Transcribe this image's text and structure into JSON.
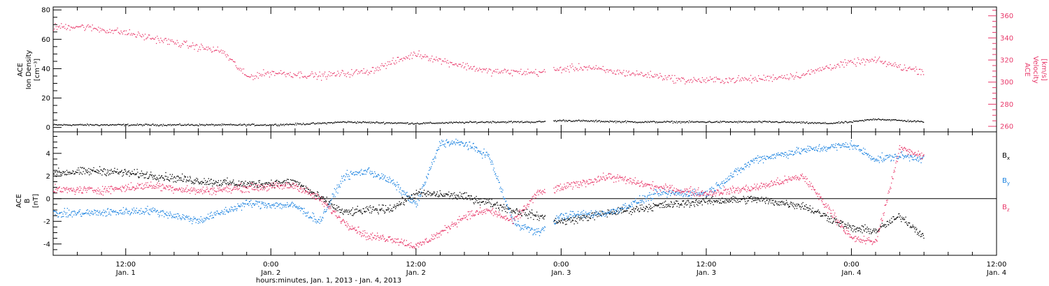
{
  "colors": {
    "density": "#000000",
    "velocity": "#e8386a",
    "bx": "#000000",
    "by": "#1a82e0",
    "bz": "#e8386a",
    "frame": "#000000"
  },
  "xaxis": {
    "title": "hours:minutes, Jan.  1, 2013 - Jan.  4, 2013",
    "range": [
      "2013-01-01T06:00",
      "2013-01-04T12:00"
    ],
    "ticks": [
      {
        "t": "2013-01-01T12:00",
        "time": "12:00",
        "day": "Jan. 1"
      },
      {
        "t": "2013-01-02T00:00",
        "time": "0:00",
        "day": "Jan. 2"
      },
      {
        "t": "2013-01-02T12:00",
        "time": "12:00",
        "day": "Jan. 2"
      },
      {
        "t": "2013-01-03T00:00",
        "time": "0:00",
        "day": "Jan. 3"
      },
      {
        "t": "2013-01-03T12:00",
        "time": "12:00",
        "day": "Jan. 3"
      },
      {
        "t": "2013-01-04T00:00",
        "time": "0:00",
        "day": "Jan. 4"
      },
      {
        "t": "2013-01-04T12:00",
        "time": "12:00",
        "day": "Jan. 4"
      }
    ]
  },
  "chart_data": [
    {
      "type": "scatter",
      "panel": "top",
      "left_axis": {
        "label_lines": [
          "ACE",
          "Ion Density",
          "[cm⁻³]"
        ],
        "ylim": [
          -3,
          82
        ],
        "ticks": [
          "0",
          "20",
          "40",
          "60",
          "80"
        ]
      },
      "right_axis": {
        "label_lines": [
          "ACE",
          "Velocity",
          "[km/s]"
        ],
        "ylim": [
          255,
          368
        ],
        "ticks": [
          "260",
          "280",
          "300",
          "320",
          "340",
          "360"
        ]
      },
      "series": [
        {
          "key": "density",
          "axis": "left",
          "x": [
            "2013-01-01T06:00",
            "2013-01-01T12:00",
            "2013-01-01T18:00",
            "2013-01-02T00:00",
            "2013-01-02T04:00",
            "2013-01-02T06:00",
            "2013-01-02T12:00",
            "2013-01-02T18:00",
            "2013-01-02T22:00",
            "2013-01-03T00:00",
            "2013-01-03T06:00",
            "2013-01-03T12:00",
            "2013-01-03T18:00",
            "2013-01-03T22:00",
            "2013-01-04T00:00",
            "2013-01-04T02:00",
            "2013-01-04T04:00",
            "2013-01-04T06:00"
          ],
          "y": [
            2,
            2,
            2,
            2,
            3,
            4,
            3,
            4,
            4,
            5,
            4,
            4,
            4,
            3,
            4,
            6,
            5,
            4
          ]
        },
        {
          "key": "velocity",
          "axis": "right",
          "x": [
            "2013-01-01T06:00",
            "2013-01-01T08:00",
            "2013-01-01T12:00",
            "2013-01-01T16:00",
            "2013-01-01T20:00",
            "2013-01-01T22:00",
            "2013-01-02T00:00",
            "2013-01-02T04:00",
            "2013-01-02T08:00",
            "2013-01-02T10:00",
            "2013-01-02T12:00",
            "2013-01-02T14:00",
            "2013-01-02T16:00",
            "2013-01-02T18:00",
            "2013-01-02T22:00",
            "2013-01-03T00:00",
            "2013-01-03T02:00",
            "2013-01-03T04:00",
            "2013-01-03T08:00",
            "2013-01-03T10:00",
            "2013-01-03T12:00",
            "2013-01-03T16:00",
            "2013-01-03T20:00",
            "2013-01-03T22:00",
            "2013-01-04T00:00",
            "2013-01-04T02:00",
            "2013-01-04T04:00",
            "2013-01-04T06:00"
          ],
          "y": [
            350,
            351,
            345,
            336,
            328,
            305,
            309,
            306,
            310,
            318,
            326,
            320,
            315,
            310,
            309,
            312,
            314,
            310,
            306,
            302,
            302,
            303,
            307,
            314,
            318,
            320,
            314,
            310
          ]
        }
      ]
    },
    {
      "type": "scatter",
      "panel": "bottom",
      "left_axis": {
        "label_lines": [
          "ACE",
          "B",
          "[nT]"
        ],
        "ylim": [
          -5,
          5.9
        ],
        "ticks": [
          "-4",
          "-2",
          "0",
          "2",
          "4"
        ]
      },
      "legend": [
        "Bx",
        "By",
        "Bz"
      ],
      "series": [
        {
          "key": "bx",
          "label": "Bx",
          "x": [
            "2013-01-01T06:00",
            "2013-01-01T10:00",
            "2013-01-01T14:00",
            "2013-01-01T18:00",
            "2013-01-01T22:00",
            "2013-01-02T02:00",
            "2013-01-02T06:00",
            "2013-01-02T08:00",
            "2013-01-02T10:00",
            "2013-01-02T12:00",
            "2013-01-02T14:00",
            "2013-01-02T16:00",
            "2013-01-02T18:00",
            "2013-01-02T20:00",
            "2013-01-03T00:00",
            "2013-01-03T04:00",
            "2013-01-03T08:00",
            "2013-01-03T12:00",
            "2013-01-03T16:00",
            "2013-01-03T20:00",
            "2013-01-04T00:00",
            "2013-01-04T02:00",
            "2013-01-04T04:00",
            "2013-01-04T06:00"
          ],
          "y": [
            2.3,
            2.5,
            2.1,
            1.6,
            1.3,
            1.5,
            -1.2,
            -1.0,
            -0.8,
            0.5,
            0.4,
            0.2,
            -0.3,
            -1.0,
            -2.0,
            -1.2,
            -0.6,
            -0.2,
            0.0,
            -0.6,
            -2.6,
            -2.8,
            -1.5,
            -3.3
          ]
        },
        {
          "key": "by",
          "label": "By",
          "x": [
            "2013-01-01T06:00",
            "2013-01-01T10:00",
            "2013-01-01T14:00",
            "2013-01-01T18:00",
            "2013-01-01T22:00",
            "2013-01-02T02:00",
            "2013-01-02T04:00",
            "2013-01-02T06:00",
            "2013-01-02T08:00",
            "2013-01-02T10:00",
            "2013-01-02T12:00",
            "2013-01-02T14:00",
            "2013-01-02T16:00",
            "2013-01-02T18:00",
            "2013-01-02T20:00",
            "2013-01-02T22:00",
            "2013-01-03T00:00",
            "2013-01-03T04:00",
            "2013-01-03T08:00",
            "2013-01-03T12:00",
            "2013-01-03T16:00",
            "2013-01-03T20:00",
            "2013-01-04T00:00",
            "2013-01-04T02:00",
            "2013-01-04T04:00",
            "2013-01-04T06:00"
          ],
          "y": [
            -1.3,
            -1.2,
            -1.0,
            -1.9,
            -0.4,
            -0.6,
            -2.0,
            2.0,
            2.5,
            1.5,
            -0.5,
            5.0,
            4.9,
            3.8,
            -2.0,
            -3.0,
            -1.5,
            -1.2,
            0.5,
            0.5,
            3.5,
            4.3,
            4.8,
            3.5,
            3.8,
            3.6
          ]
        },
        {
          "key": "bz",
          "label": "Bz",
          "x": [
            "2013-01-01T06:00",
            "2013-01-01T10:00",
            "2013-01-01T14:00",
            "2013-01-01T18:00",
            "2013-01-01T22:00",
            "2013-01-02T02:00",
            "2013-01-02T04:00",
            "2013-01-02T06:00",
            "2013-01-02T08:00",
            "2013-01-02T10:00",
            "2013-01-02T12:00",
            "2013-01-02T14:00",
            "2013-01-02T16:00",
            "2013-01-02T18:00",
            "2013-01-02T20:00",
            "2013-01-02T22:00",
            "2013-01-03T00:00",
            "2013-01-03T04:00",
            "2013-01-03T08:00",
            "2013-01-03T12:00",
            "2013-01-03T16:00",
            "2013-01-03T20:00",
            "2013-01-04T00:00",
            "2013-01-04T02:00",
            "2013-01-04T04:00",
            "2013-01-04T06:00"
          ],
          "y": [
            0.8,
            0.8,
            1.2,
            0.7,
            1.0,
            1.2,
            0.0,
            -2.0,
            -3.3,
            -3.5,
            -4.2,
            -3.0,
            -1.5,
            -1.0,
            -2.0,
            0.5,
            1.0,
            2.0,
            1.0,
            0.5,
            1.0,
            2.0,
            -3.5,
            -3.8,
            4.5,
            3.8
          ]
        }
      ]
    }
  ]
}
